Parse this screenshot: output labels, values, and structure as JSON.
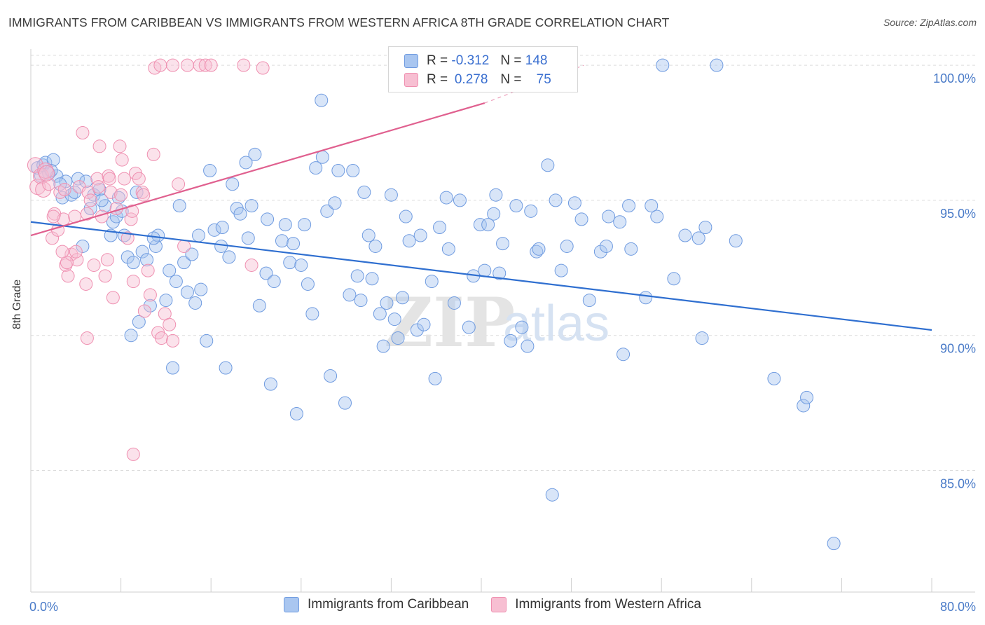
{
  "title": "IMMIGRANTS FROM CARIBBEAN VS IMMIGRANTS FROM WESTERN AFRICA 8TH GRADE CORRELATION CHART",
  "source": "Source: ZipAtlas.com",
  "watermark": {
    "zip": "ZIP",
    "atlas": "atlas"
  },
  "legend": {
    "r_label": "R =",
    "n_label": "N =",
    "rows": [
      {
        "r": "-0.312",
        "n": "148",
        "color": "#a9c6f0",
        "border": "#6f9be0"
      },
      {
        "r": "0.278",
        "n": "75",
        "color": "#f7bfd2",
        "border": "#ef8fb0"
      }
    ]
  },
  "bottom_legend": [
    {
      "label": "Immigrants from Caribbean",
      "color": "#a9c6f0",
      "border": "#6f9be0"
    },
    {
      "label": "Immigrants from Western Africa",
      "color": "#f7bfd2",
      "border": "#ef8fb0"
    }
  ],
  "chart_data": {
    "type": "scatter",
    "title": "IMMIGRANTS FROM CARIBBEAN VS IMMIGRANTS FROM WESTERN AFRICA 8TH GRADE CORRELATION CHART",
    "xlabel": "",
    "ylabel": "8th Grade",
    "xlim": [
      0,
      80
    ],
    "ylim": [
      80.5,
      100.6
    ],
    "x_ticks": [
      "0.0%",
      "80.0%"
    ],
    "y_ticks": [
      {
        "value": 100,
        "label": "100.0%"
      },
      {
        "value": 95,
        "label": "95.0%"
      },
      {
        "value": 90,
        "label": "90.0%"
      },
      {
        "value": 85,
        "label": "85.0%"
      }
    ],
    "grid": "horizontal dashed",
    "legend_position": "top-center",
    "series": [
      {
        "name": "Immigrants from Caribbean",
        "color": "#6f9be0",
        "fill": "rgba(169,198,240,0.45)",
        "trend": {
          "x0": 0,
          "y0": 94.2,
          "x1": 80,
          "y1": 90.2,
          "color": "#2f6fd0"
        },
        "points": [
          [
            0.6,
            96.2
          ],
          [
            0.9,
            95.9
          ],
          [
            1.1,
            96.3
          ],
          [
            1.3,
            96.4
          ],
          [
            1.6,
            96.0
          ],
          [
            2.0,
            96.5
          ],
          [
            2.3,
            95.9
          ],
          [
            2.8,
            95.1
          ],
          [
            3.1,
            95.7
          ],
          [
            3.6,
            95.2
          ],
          [
            4.2,
            95.8
          ],
          [
            4.6,
            93.3
          ],
          [
            4.9,
            95.7
          ],
          [
            5.3,
            94.7
          ],
          [
            5.6,
            95.2
          ],
          [
            6.1,
            95.4
          ],
          [
            6.6,
            94.8
          ],
          [
            7.1,
            93.7
          ],
          [
            7.3,
            94.2
          ],
          [
            7.8,
            95.1
          ],
          [
            8.3,
            93.7
          ],
          [
            8.6,
            92.9
          ],
          [
            8.9,
            90.0
          ],
          [
            9.1,
            92.7
          ],
          [
            9.6,
            90.5
          ],
          [
            9.9,
            93.1
          ],
          [
            10.3,
            92.8
          ],
          [
            10.6,
            91.1
          ],
          [
            11.1,
            93.3
          ],
          [
            11.3,
            93.7
          ],
          [
            12.0,
            91.3
          ],
          [
            12.3,
            92.4
          ],
          [
            12.6,
            88.8
          ],
          [
            13.2,
            94.8
          ],
          [
            13.6,
            92.7
          ],
          [
            13.9,
            91.6
          ],
          [
            14.3,
            93.0
          ],
          [
            14.6,
            91.2
          ],
          [
            15.1,
            91.7
          ],
          [
            15.6,
            89.8
          ],
          [
            16.3,
            93.9
          ],
          [
            16.9,
            93.3
          ],
          [
            17.3,
            88.8
          ],
          [
            17.6,
            92.9
          ],
          [
            17.9,
            95.6
          ],
          [
            18.3,
            94.7
          ],
          [
            18.6,
            94.5
          ],
          [
            19.3,
            93.6
          ],
          [
            19.6,
            94.8
          ],
          [
            19.9,
            96.7
          ],
          [
            20.3,
            91.1
          ],
          [
            20.9,
            92.3
          ],
          [
            21.3,
            88.2
          ],
          [
            21.6,
            92.0
          ],
          [
            22.3,
            93.5
          ],
          [
            22.6,
            94.1
          ],
          [
            23.0,
            92.7
          ],
          [
            23.3,
            93.4
          ],
          [
            23.6,
            87.1
          ],
          [
            24.0,
            92.6
          ],
          [
            24.3,
            94.1
          ],
          [
            24.6,
            91.9
          ],
          [
            25.0,
            90.8
          ],
          [
            25.3,
            96.2
          ],
          [
            25.9,
            96.6
          ],
          [
            26.3,
            94.6
          ],
          [
            26.6,
            88.5
          ],
          [
            27.3,
            96.1
          ],
          [
            27.9,
            87.5
          ],
          [
            28.3,
            91.5
          ],
          [
            28.6,
            96.1
          ],
          [
            29.0,
            92.2
          ],
          [
            29.3,
            91.3
          ],
          [
            30.0,
            93.7
          ],
          [
            30.3,
            92.1
          ],
          [
            30.6,
            93.3
          ],
          [
            31.0,
            90.8
          ],
          [
            31.3,
            89.6
          ],
          [
            31.6,
            91.2
          ],
          [
            32.0,
            95.2
          ],
          [
            32.3,
            90.6
          ],
          [
            32.6,
            89.9
          ],
          [
            33.0,
            91.4
          ],
          [
            33.6,
            93.5
          ],
          [
            34.3,
            90.2
          ],
          [
            34.6,
            93.7
          ],
          [
            34.9,
            90.4
          ],
          [
            35.6,
            92.0
          ],
          [
            35.9,
            88.4
          ],
          [
            36.3,
            94.0
          ],
          [
            37.1,
            93.2
          ],
          [
            37.6,
            91.2
          ],
          [
            38.1,
            95.0
          ],
          [
            38.9,
            90.3
          ],
          [
            39.3,
            92.2
          ],
          [
            39.9,
            94.1
          ],
          [
            40.3,
            92.4
          ],
          [
            41.1,
            94.5
          ],
          [
            41.3,
            95.2
          ],
          [
            41.6,
            92.3
          ],
          [
            41.9,
            93.4
          ],
          [
            42.6,
            89.8
          ],
          [
            43.1,
            94.8
          ],
          [
            43.6,
            90.3
          ],
          [
            44.1,
            89.6
          ],
          [
            44.9,
            93.1
          ],
          [
            45.1,
            93.2
          ],
          [
            45.9,
            96.3
          ],
          [
            46.3,
            84.1
          ],
          [
            46.6,
            95.0
          ],
          [
            47.1,
            92.4
          ],
          [
            47.6,
            93.3
          ],
          [
            48.9,
            94.3
          ],
          [
            49.6,
            91.3
          ],
          [
            50.6,
            93.1
          ],
          [
            51.1,
            93.3
          ],
          [
            51.3,
            94.4
          ],
          [
            52.3,
            94.2
          ],
          [
            52.6,
            89.3
          ],
          [
            53.1,
            94.8
          ],
          [
            53.3,
            93.2
          ],
          [
            54.6,
            91.4
          ],
          [
            55.1,
            94.8
          ],
          [
            56.1,
            100.0
          ],
          [
            57.1,
            92.1
          ],
          [
            59.3,
            93.6
          ],
          [
            59.6,
            89.9
          ],
          [
            59.9,
            94.0
          ],
          [
            60.9,
            100.0
          ],
          [
            62.6,
            93.5
          ],
          [
            66.0,
            88.4
          ],
          [
            68.6,
            87.4
          ],
          [
            68.9,
            87.7
          ],
          [
            71.3,
            82.3
          ],
          [
            25.8,
            98.7
          ],
          [
            7.6,
            94.4
          ],
          [
            9.4,
            95.3
          ],
          [
            12.9,
            92.0
          ],
          [
            15.9,
            96.1
          ],
          [
            19.1,
            96.4
          ],
          [
            1.8,
            96.1
          ],
          [
            3.9,
            95.3
          ],
          [
            6.3,
            95.0
          ],
          [
            2.6,
            95.6
          ],
          [
            8.1,
            94.6
          ],
          [
            10.9,
            93.6
          ],
          [
            14.9,
            93.7
          ],
          [
            17.0,
            94.0
          ],
          [
            21.0,
            94.3
          ],
          [
            27.0,
            94.9
          ],
          [
            29.6,
            95.3
          ],
          [
            33.3,
            94.4
          ],
          [
            36.9,
            95.1
          ],
          [
            40.6,
            94.1
          ],
          [
            44.4,
            94.6
          ],
          [
            48.3,
            94.9
          ],
          [
            55.6,
            94.4
          ],
          [
            58.1,
            93.7
          ]
        ]
      },
      {
        "name": "Immigrants from Western Africa",
        "color": "#ef8fb0",
        "fill": "rgba(247,191,210,0.45)",
        "trend": {
          "x0": 0,
          "y0": 93.7,
          "x1": 40.3,
          "y1": 98.6,
          "dash_to": {
            "x": 49.1,
            "y": 100.0
          },
          "color": "#e0608f"
        },
        "points": [
          [
            0.4,
            96.3
          ],
          [
            0.6,
            95.5
          ],
          [
            0.9,
            95.9
          ],
          [
            1.1,
            95.4
          ],
          [
            1.3,
            96.1
          ],
          [
            1.6,
            95.6
          ],
          [
            1.9,
            93.6
          ],
          [
            2.1,
            94.5
          ],
          [
            2.4,
            93.9
          ],
          [
            2.6,
            95.3
          ],
          [
            2.9,
            94.3
          ],
          [
            3.1,
            92.6
          ],
          [
            3.3,
            92.2
          ],
          [
            3.6,
            93.0
          ],
          [
            3.9,
            94.4
          ],
          [
            4.1,
            92.8
          ],
          [
            4.3,
            95.5
          ],
          [
            4.6,
            97.5
          ],
          [
            4.9,
            91.9
          ],
          [
            5.1,
            95.3
          ],
          [
            5.3,
            95.0
          ],
          [
            5.6,
            92.6
          ],
          [
            5.9,
            95.8
          ],
          [
            6.1,
            97.0
          ],
          [
            6.3,
            94.4
          ],
          [
            6.6,
            92.2
          ],
          [
            6.9,
            95.9
          ],
          [
            7.1,
            95.3
          ],
          [
            7.3,
            91.4
          ],
          [
            7.6,
            94.7
          ],
          [
            7.9,
            97.0
          ],
          [
            8.1,
            96.5
          ],
          [
            8.3,
            95.8
          ],
          [
            8.6,
            93.6
          ],
          [
            8.9,
            94.3
          ],
          [
            9.1,
            92.0
          ],
          [
            9.3,
            96.0
          ],
          [
            9.6,
            95.8
          ],
          [
            9.9,
            95.3
          ],
          [
            10.1,
            90.9
          ],
          [
            10.4,
            92.4
          ],
          [
            10.6,
            91.5
          ],
          [
            10.9,
            96.7
          ],
          [
            11.3,
            90.1
          ],
          [
            11.6,
            89.9
          ],
          [
            11.9,
            90.8
          ],
          [
            12.3,
            90.4
          ],
          [
            12.6,
            89.8
          ],
          [
            13.1,
            95.6
          ],
          [
            13.6,
            93.3
          ],
          [
            1.4,
            96.0
          ],
          [
            2.0,
            94.4
          ],
          [
            3.0,
            95.4
          ],
          [
            4.0,
            93.1
          ],
          [
            5.0,
            94.5
          ],
          [
            6.0,
            95.5
          ],
          [
            7.0,
            95.8
          ],
          [
            8.0,
            95.2
          ],
          [
            9.0,
            94.6
          ],
          [
            10.0,
            95.2
          ],
          [
            11.0,
            99.9
          ],
          [
            11.5,
            100.0
          ],
          [
            12.6,
            100.0
          ],
          [
            13.9,
            100.0
          ],
          [
            15.0,
            100.0
          ],
          [
            15.5,
            100.0
          ],
          [
            16.0,
            100.0
          ],
          [
            18.9,
            100.0
          ],
          [
            19.6,
            92.6
          ],
          [
            20.6,
            99.9
          ],
          [
            5.0,
            89.9
          ],
          [
            9.1,
            85.6
          ],
          [
            3.2,
            92.7
          ],
          [
            6.8,
            92.8
          ],
          [
            2.8,
            93.1
          ]
        ]
      }
    ]
  }
}
